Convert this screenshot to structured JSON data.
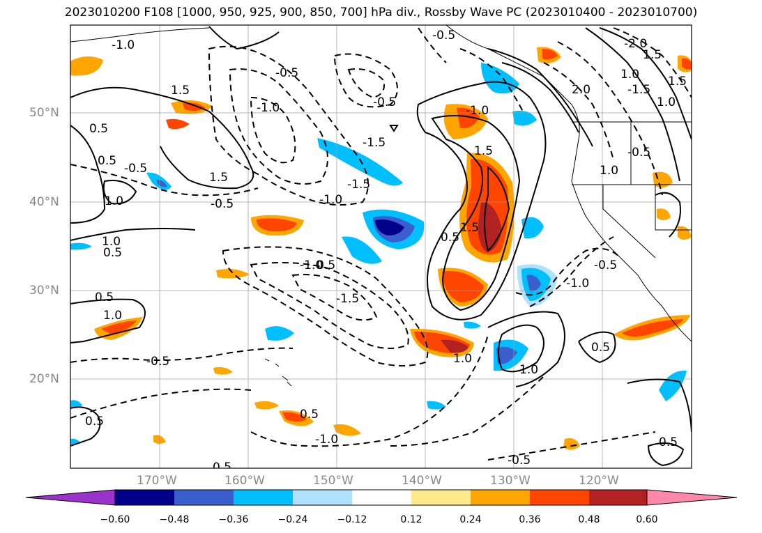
{
  "title": "2023010200 F108 [1000, 950, 925, 900, 850, 700] hPa div., Rossby Wave PC (2023010400 - 2023010700)",
  "lat_labels": [
    "50°N",
    "40°N",
    "30°N",
    "20°N"
  ],
  "lon_labels": [
    "170°W",
    "160°W",
    "150°W",
    "140°W",
    "130°W",
    "120°W"
  ],
  "contour_labels": [
    "-1.0",
    "-0.5",
    "1.5",
    "-1.5",
    "-0.5",
    "-1.0",
    "-0.5",
    "0.5",
    "1.5",
    "-1.0",
    "-0.5",
    "-1.5",
    "1.0",
    "-0.5",
    "1.0",
    "0.5",
    "-1.0",
    "0.5",
    "1.0",
    "-1.5",
    "1.5",
    "0.5",
    "-1.0",
    "-0.5",
    "0.5",
    "1.0",
    "0.5",
    "-0.5",
    "0.5",
    "-1.0",
    "0.5",
    "0.5",
    "-0.5",
    "-0.5",
    "-1.0",
    "1.5",
    "-2.0",
    "1.5",
    "1.0",
    "-1.5",
    "2.0",
    "1.5",
    "1.0",
    "-0.5",
    "1.0",
    "1.0",
    "0.5"
  ],
  "colorbar": {
    "ticks": [
      "−0.60",
      "−0.48",
      "−0.36",
      "−0.24",
      "−0.12",
      "0.12",
      "0.24",
      "0.36",
      "0.48",
      "0.60"
    ],
    "colors": {
      "under": "#9933cc",
      "levels": [
        "#00008b",
        "#3a5fcd",
        "#00bfff",
        "#b0e2ff",
        "#ffffff",
        "#ffe98a",
        "#ffa500",
        "#ff4500",
        "#b22222"
      ],
      "over": "#ff88aa"
    }
  },
  "colors": {
    "grid": "#999999",
    "contour": "#000000",
    "axis_label": "#888888"
  }
}
